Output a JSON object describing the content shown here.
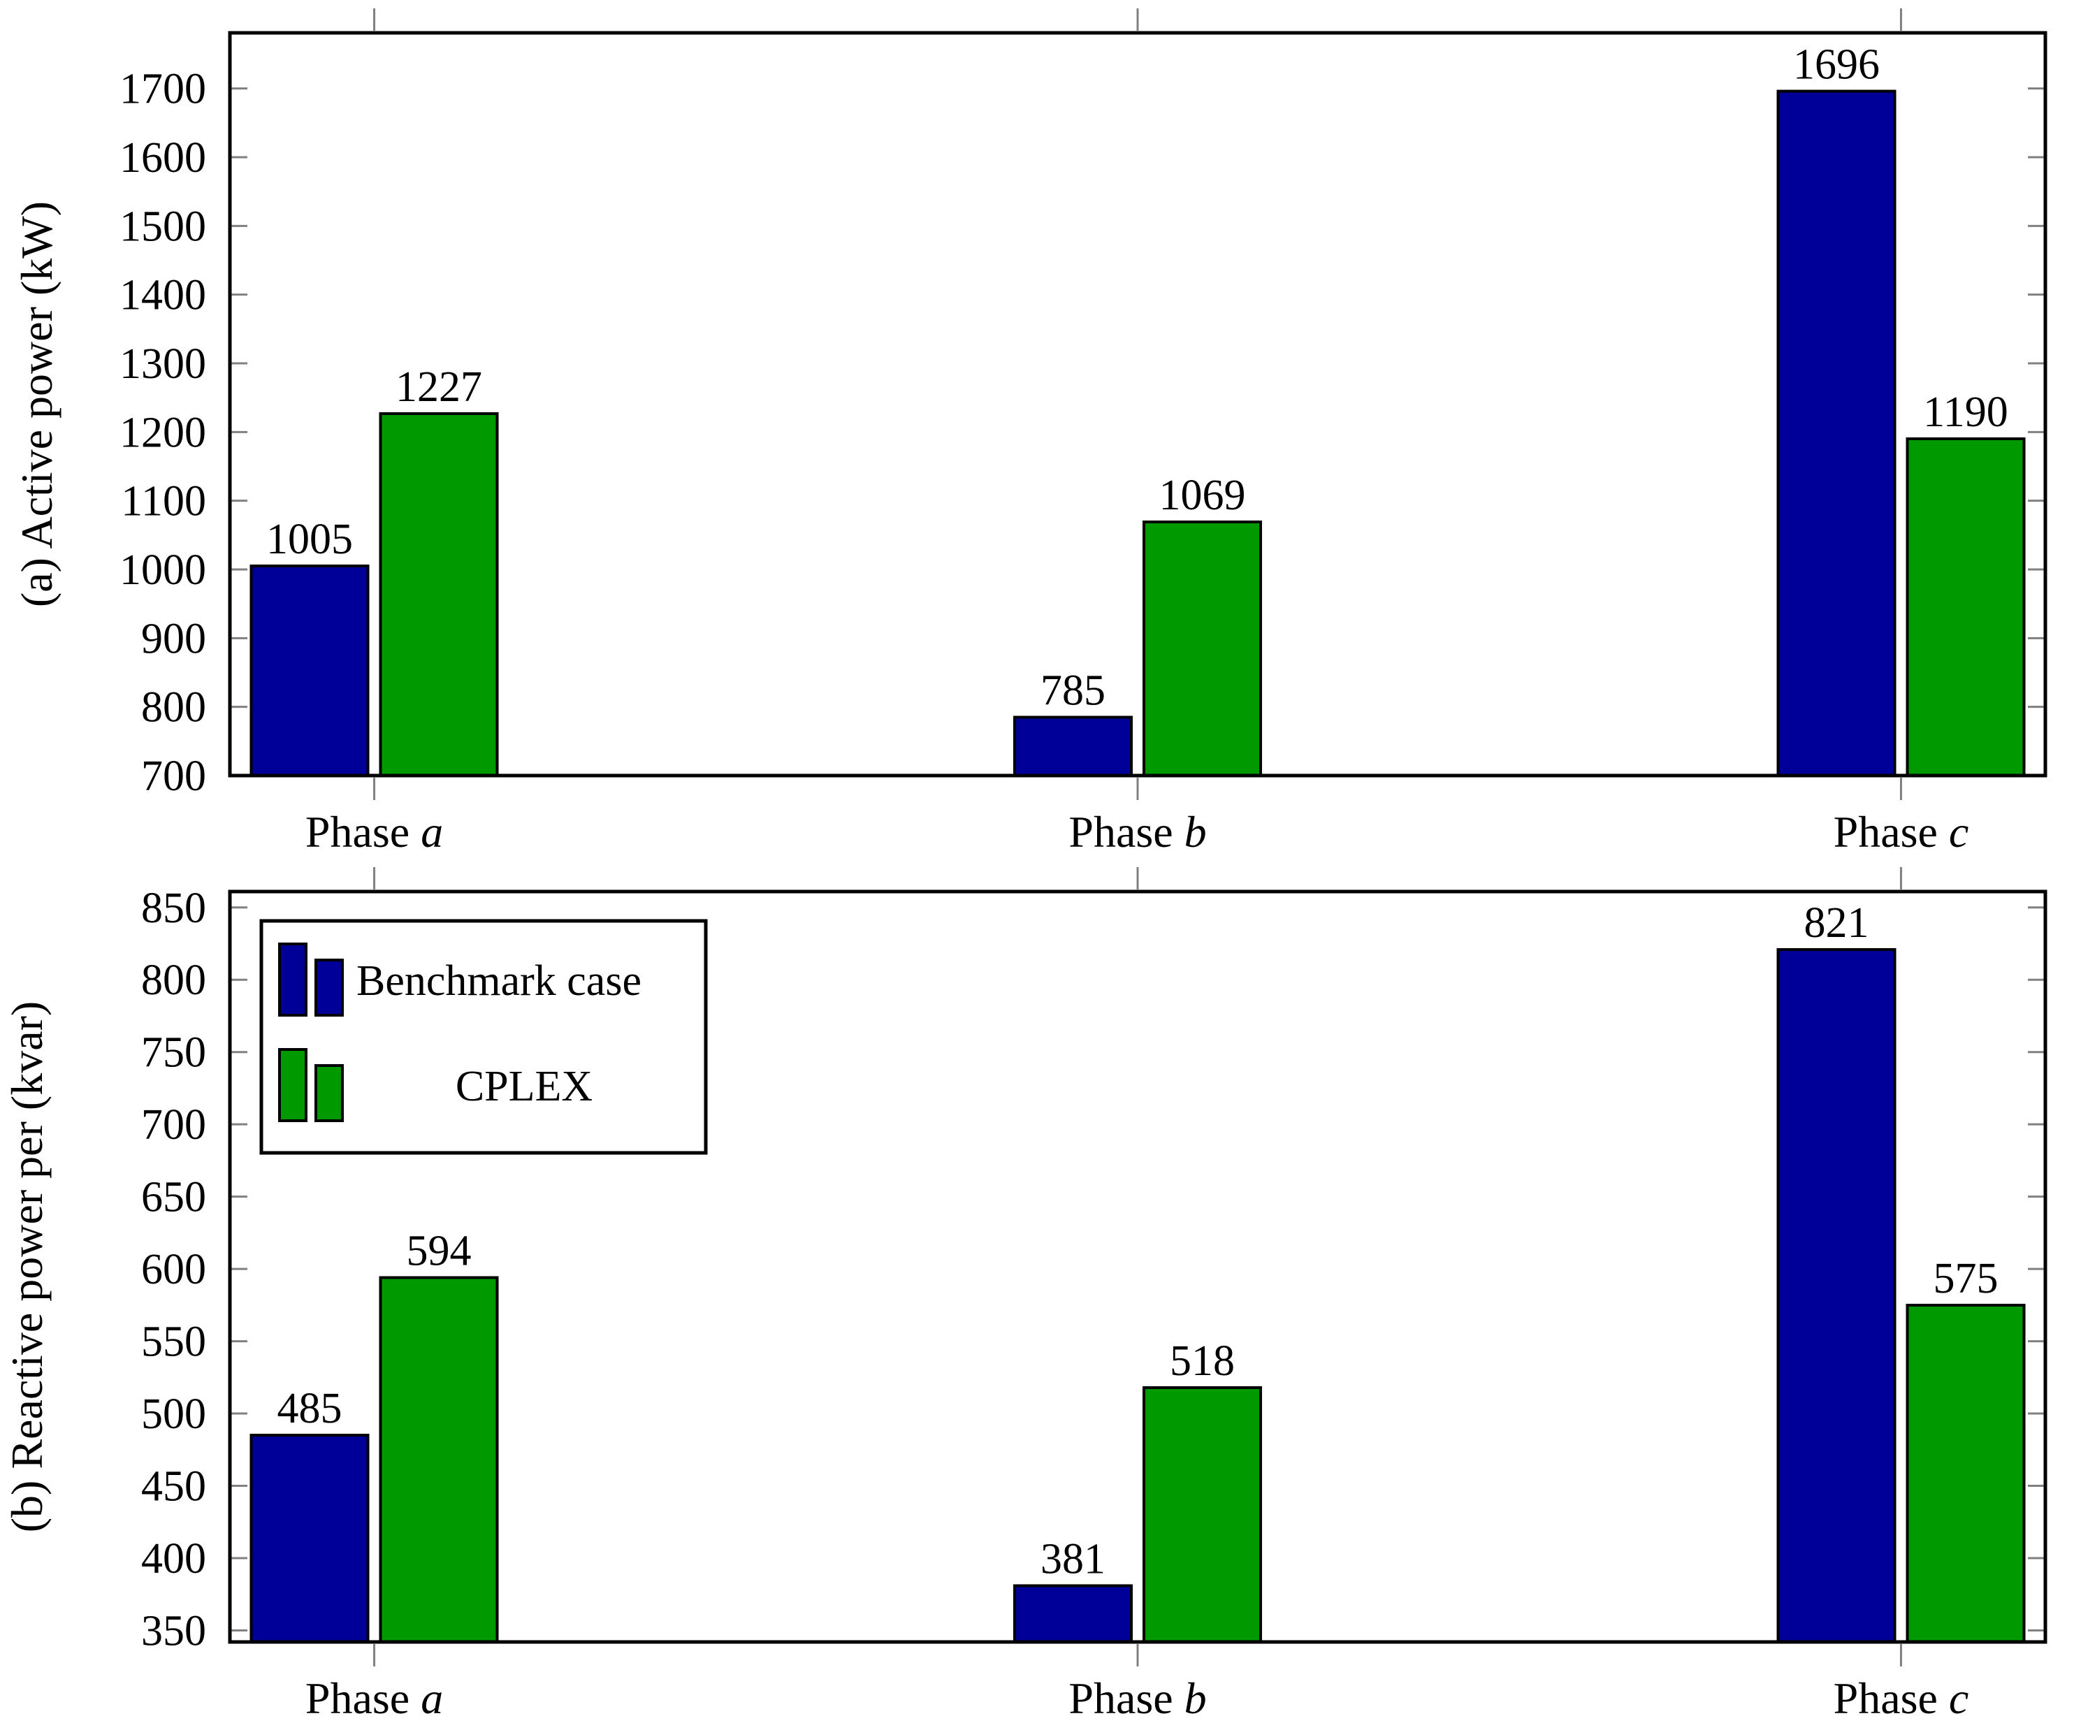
{
  "figure": {
    "background": "#ffffff",
    "axis_color": "#000000",
    "tick_color": "#808080",
    "bar_edge_color": "#000000",
    "text_color": "#000000"
  },
  "legend": {
    "position": "top-left-inside-bottom-panel",
    "entries": [
      {
        "label": "Benchmark case",
        "color": "#000099"
      },
      {
        "label": "CPLEX",
        "color": "#009900"
      }
    ]
  },
  "chart_data": [
    {
      "id": "a",
      "type": "bar",
      "title": "",
      "ylabel": "(a) Active power (kW)",
      "xlabel": "",
      "categories": [
        "Phase a",
        "Phase b",
        "Phase c"
      ],
      "series": [
        {
          "name": "Benchmark case",
          "color": "#000099",
          "values": [
            1005,
            785,
            1696
          ]
        },
        {
          "name": "CPLEX",
          "color": "#009900",
          "values": [
            1227,
            1069,
            1190
          ]
        }
      ],
      "bar_value_labels": true,
      "ylim": [
        700,
        1781
      ],
      "yticks": [
        700,
        800,
        900,
        1000,
        1100,
        1200,
        1300,
        1400,
        1500,
        1600,
        1700
      ],
      "grid": false,
      "legend_shown": false
    },
    {
      "id": "b",
      "type": "bar",
      "title": "",
      "ylabel": "(b) Reactive power per (kvar)",
      "xlabel": "",
      "categories": [
        "Phase a",
        "Phase b",
        "Phase c"
      ],
      "series": [
        {
          "name": "Benchmark case",
          "color": "#000099",
          "values": [
            485,
            381,
            821
          ]
        },
        {
          "name": "CPLEX",
          "color": "#009900",
          "values": [
            594,
            518,
            575
          ]
        }
      ],
      "bar_value_labels": true,
      "ylim": [
        342,
        861
      ],
      "yticks": [
        350,
        400,
        450,
        500,
        550,
        600,
        650,
        700,
        750,
        800,
        850
      ],
      "grid": false,
      "legend_shown": true
    }
  ]
}
